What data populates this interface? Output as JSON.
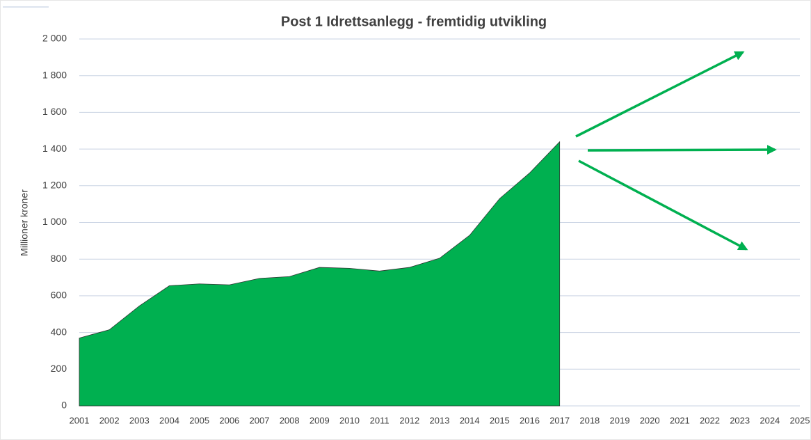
{
  "chart_data": {
    "type": "area",
    "title": "Post 1 Idrettsanlegg - fremtidig utvikling",
    "y_label": "Millioner kroner",
    "categories": [
      "2001",
      "2002",
      "2003",
      "2004",
      "2005",
      "2006",
      "2007",
      "2008",
      "2009",
      "2010",
      "2011",
      "2012",
      "2013",
      "2014",
      "2015",
      "2016",
      "2017",
      "2018",
      "2019",
      "2020",
      "2021",
      "2022",
      "2023",
      "2024",
      "2025"
    ],
    "values": [
      370,
      415,
      545,
      655,
      665,
      660,
      695,
      705,
      755,
      750,
      735,
      755,
      805,
      930,
      1130,
      1270,
      1440,
      null,
      null,
      null,
      null,
      null,
      null,
      null,
      null
    ],
    "color": "#00b050",
    "ylim": [
      0,
      2000
    ],
    "yticks": [
      0,
      200,
      400,
      600,
      800,
      {
        "value": 1000,
        "label": "1 000"
      },
      {
        "value": 1200,
        "label": "1 200"
      },
      {
        "value": 1400,
        "label": "1 400"
      },
      {
        "value": 1600,
        "label": "1 600"
      },
      {
        "value": 1800,
        "label": "1 800"
      },
      {
        "value": 2000,
        "label": "2 000"
      }
    ],
    "grid": true
  }
}
